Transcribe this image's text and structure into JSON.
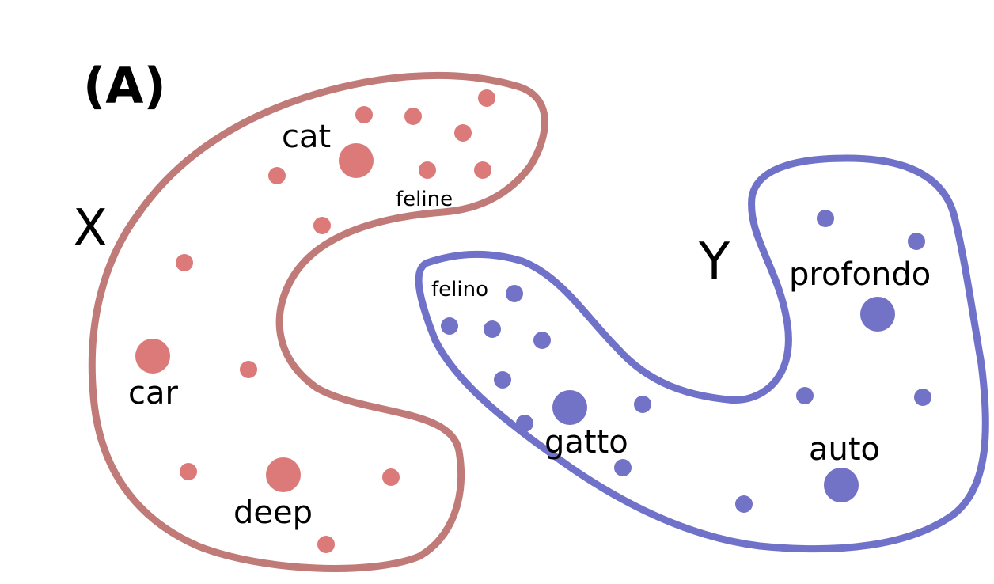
{
  "panel_label": "(A)",
  "spaces": {
    "x": {
      "label": "X",
      "color": "#c07a78",
      "point_color": "#dc7a7a",
      "words": {
        "cat": "cat",
        "feline": "feline",
        "car": "car",
        "deep": "deep"
      }
    },
    "y": {
      "label": "Y",
      "color": "#6f72c8",
      "point_color": "#7272c6",
      "words": {
        "felino": "felino",
        "profondo": "profondo",
        "gatto": "gatto",
        "auto": "auto"
      }
    }
  }
}
